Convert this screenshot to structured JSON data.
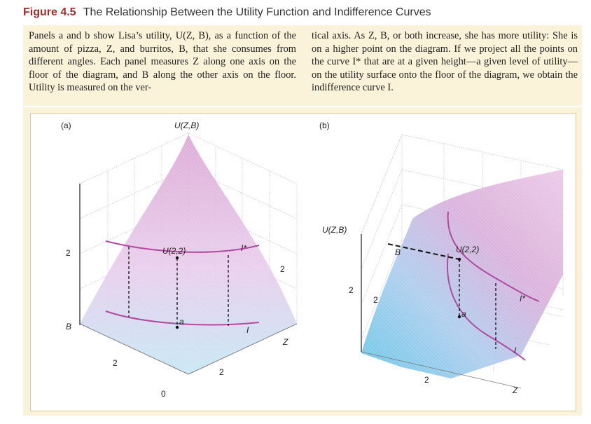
{
  "figure": {
    "number": "Figure 4.5",
    "title": "The Relationship Between the Utility Function and Indifference Curves"
  },
  "caption": {
    "left": "Panels a and b show Lisa’s utility, U(Z, B), as a function of the amount of pizza, Z, and burritos, B, that she consumes from different angles. Each panel measures Z along one axis on the floor of the diagram, and B along the other axis on the floor. Utility is measured on the ver-",
    "right": "tical axis. As Z, B, or both increase, she has more utility: She is on a higher point on the diagram. If we project all the points on the curve I* that are at a given height—a given level of utility—on the utility surface onto the floor of the diagram, we obtain the indifference curve I."
  },
  "panel_a": {
    "tag": "(a)",
    "u_axis": "U(Z,B)",
    "u_tick": "2",
    "b_axis": "B",
    "b_tick": "2",
    "origin": "0",
    "z_tick": "2",
    "z_axis": "Z",
    "right_tick": "2",
    "point_label": "U(2,2)",
    "upper_curve": "I*",
    "lower_curve": "I",
    "floor_point": "a"
  },
  "panel_b": {
    "tag": "(b)",
    "u_axis": "U(Z,B)",
    "u_tick": "2",
    "b_axis": "B",
    "b_tick": "2",
    "z_tick": "2",
    "z_axis": "Z",
    "point_label": "U(2,2)",
    "upper_curve": "I*",
    "lower_curve": "I",
    "floor_point": "a"
  },
  "colors": {
    "title_accent": "#9c2f2a",
    "caption_bg": "#fbf3d9",
    "surface_pink": "#d9a6d6",
    "surface_blue": "#66c6e8",
    "curve": "#b24aa0"
  }
}
